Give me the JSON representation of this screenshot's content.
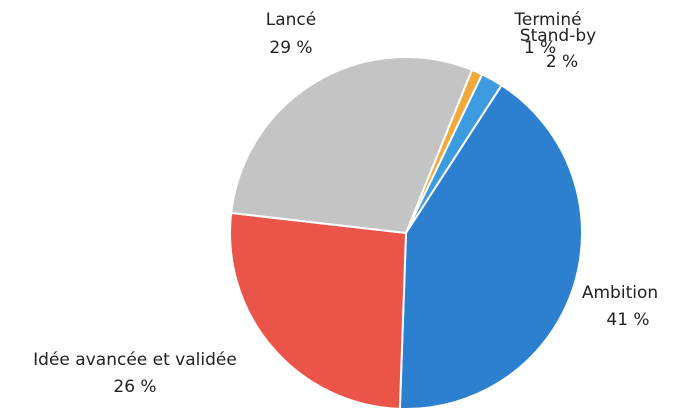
{
  "chart_data": {
    "type": "pie",
    "categories": [
      "Terminé",
      "Stand-by",
      "Ambition",
      "Idée avancée et validée",
      "Lancé"
    ],
    "values": [
      1,
      2,
      41,
      26,
      29
    ],
    "value_labels": [
      "1 %",
      "2 %",
      "41 %",
      "26 %",
      "29 %"
    ],
    "colors": [
      "#f2a93b",
      "#3d9be0",
      "#2d7fd0",
      "#ea5449",
      "#c4c4c4"
    ]
  }
}
